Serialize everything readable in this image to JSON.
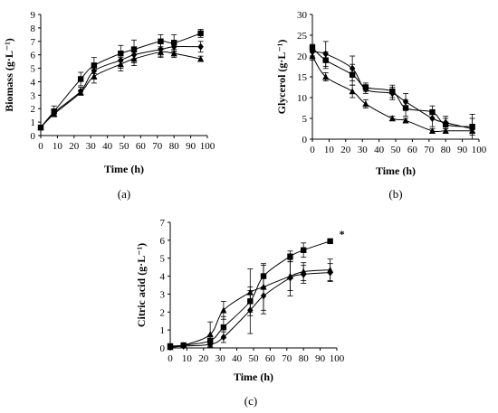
{
  "chart_data": [
    {
      "type": "line",
      "panel_label": "(a)",
      "xlabel": "Time (h)",
      "ylabel": "Biomass (g·L⁻¹)",
      "xlim": [
        0,
        100
      ],
      "xticks": [
        0,
        10,
        20,
        30,
        40,
        50,
        60,
        70,
        80,
        90,
        100
      ],
      "ylim": [
        0,
        9
      ],
      "yticks": [
        0,
        1,
        2,
        3,
        4,
        5,
        6,
        7,
        8,
        9
      ],
      "grid": false,
      "series": [
        {
          "marker": "square",
          "x": [
            0,
            8,
            24,
            32,
            48,
            56,
            72,
            80,
            96
          ],
          "y": [
            0.6,
            1.8,
            4.2,
            5.2,
            6.1,
            6.4,
            7.0,
            6.9,
            7.6
          ],
          "err": [
            0.1,
            0.4,
            0.5,
            0.6,
            0.6,
            0.7,
            0.5,
            0.6,
            0.3
          ]
        },
        {
          "marker": "diamond",
          "x": [
            0,
            8,
            24,
            32,
            48,
            56,
            72,
            80,
            96
          ],
          "y": [
            0.6,
            1.7,
            3.3,
            4.8,
            5.6,
            6.0,
            6.4,
            6.6,
            6.6
          ],
          "err": [
            0.1,
            0.2,
            0.3,
            0.6,
            0.6,
            0.6,
            0.5,
            0.4,
            0.4
          ]
        },
        {
          "marker": "triangle",
          "x": [
            0,
            8,
            24,
            32,
            48,
            56,
            72,
            80,
            96
          ],
          "y": [
            0.6,
            1.6,
            3.2,
            4.4,
            5.3,
            5.7,
            6.2,
            6.1,
            5.7
          ],
          "err": [
            0.1,
            0.2,
            0.2,
            0.5,
            0.5,
            0.5,
            0.4,
            0.3,
            0.2
          ]
        }
      ]
    },
    {
      "type": "line",
      "panel_label": "(b)",
      "xlabel": "Time (h)",
      "ylabel": "Glycerol (g·L⁻¹)",
      "xlim": [
        0,
        100
      ],
      "xticks": [
        0,
        10,
        20,
        30,
        40,
        50,
        60,
        70,
        80,
        90,
        100
      ],
      "ylim": [
        0,
        30
      ],
      "yticks": [
        0,
        5,
        10,
        15,
        20,
        25,
        30
      ],
      "grid": false,
      "series": [
        {
          "marker": "square",
          "x": [
            0,
            8,
            24,
            32,
            48,
            56,
            72,
            80,
            96
          ],
          "y": [
            22,
            19,
            15.5,
            12.5,
            11.5,
            7.5,
            6.5,
            3.5,
            3.0
          ],
          "err": [
            0.8,
            2.0,
            2.5,
            1.0,
            1.5,
            2.0,
            1.5,
            1.5,
            2.0
          ]
        },
        {
          "marker": "diamond",
          "x": [
            0,
            8,
            24,
            32,
            48,
            56,
            72,
            80,
            96
          ],
          "y": [
            21,
            20.5,
            17,
            12,
            11,
            9,
            5,
            4,
            2.5
          ],
          "err": [
            1.0,
            3.0,
            3.0,
            1.0,
            1.5,
            2.0,
            2.0,
            1.5,
            3.5
          ]
        },
        {
          "marker": "triangle",
          "x": [
            0,
            8,
            24,
            32,
            48,
            56,
            72,
            80,
            96
          ],
          "y": [
            20,
            15,
            11.5,
            8.5,
            5,
            4.5,
            2,
            2,
            2
          ],
          "err": [
            1.0,
            1.0,
            1.5,
            1.0,
            0.5,
            0.5,
            0.5,
            0.5,
            0.3
          ]
        }
      ]
    },
    {
      "type": "line",
      "panel_label": "(c)",
      "xlabel": "Time (h)",
      "ylabel": "Citric acid (g·L⁻¹)",
      "xlim": [
        0,
        100
      ],
      "xticks": [
        0,
        10,
        20,
        30,
        40,
        50,
        60,
        70,
        80,
        90,
        100
      ],
      "ylim": [
        0,
        7
      ],
      "yticks": [
        0,
        1,
        2,
        3,
        4,
        5,
        6,
        7
      ],
      "grid": false,
      "annotation": "*",
      "series": [
        {
          "marker": "square",
          "x": [
            0,
            8,
            24,
            32,
            48,
            56,
            72,
            80,
            96
          ],
          "y": [
            0.1,
            0.15,
            0.4,
            1.15,
            2.6,
            4.0,
            5.1,
            5.45,
            5.95
          ],
          "err": [
            0.05,
            0.05,
            0.3,
            0.6,
            0.6,
            0.6,
            0.3,
            0.4,
            0.1
          ]
        },
        {
          "marker": "diamond",
          "x": [
            0,
            8,
            24,
            32,
            48,
            56,
            72,
            80,
            96
          ],
          "y": [
            0.05,
            0.1,
            0.2,
            0.6,
            2.1,
            2.9,
            3.9,
            4.1,
            4.2
          ],
          "err": [
            0.05,
            0.05,
            0.2,
            0.3,
            1.3,
            1.0,
            1.0,
            0.5,
            0.5
          ]
        },
        {
          "marker": "triangle",
          "x": [
            0,
            8,
            24,
            32,
            48,
            56,
            72,
            80,
            96
          ],
          "y": [
            0.05,
            0.15,
            0.75,
            2.1,
            3.1,
            3.4,
            4.0,
            4.25,
            4.35
          ],
          "err": [
            0.05,
            0.05,
            0.7,
            0.5,
            1.3,
            1.3,
            0.8,
            0.5,
            0.6
          ]
        }
      ]
    }
  ]
}
